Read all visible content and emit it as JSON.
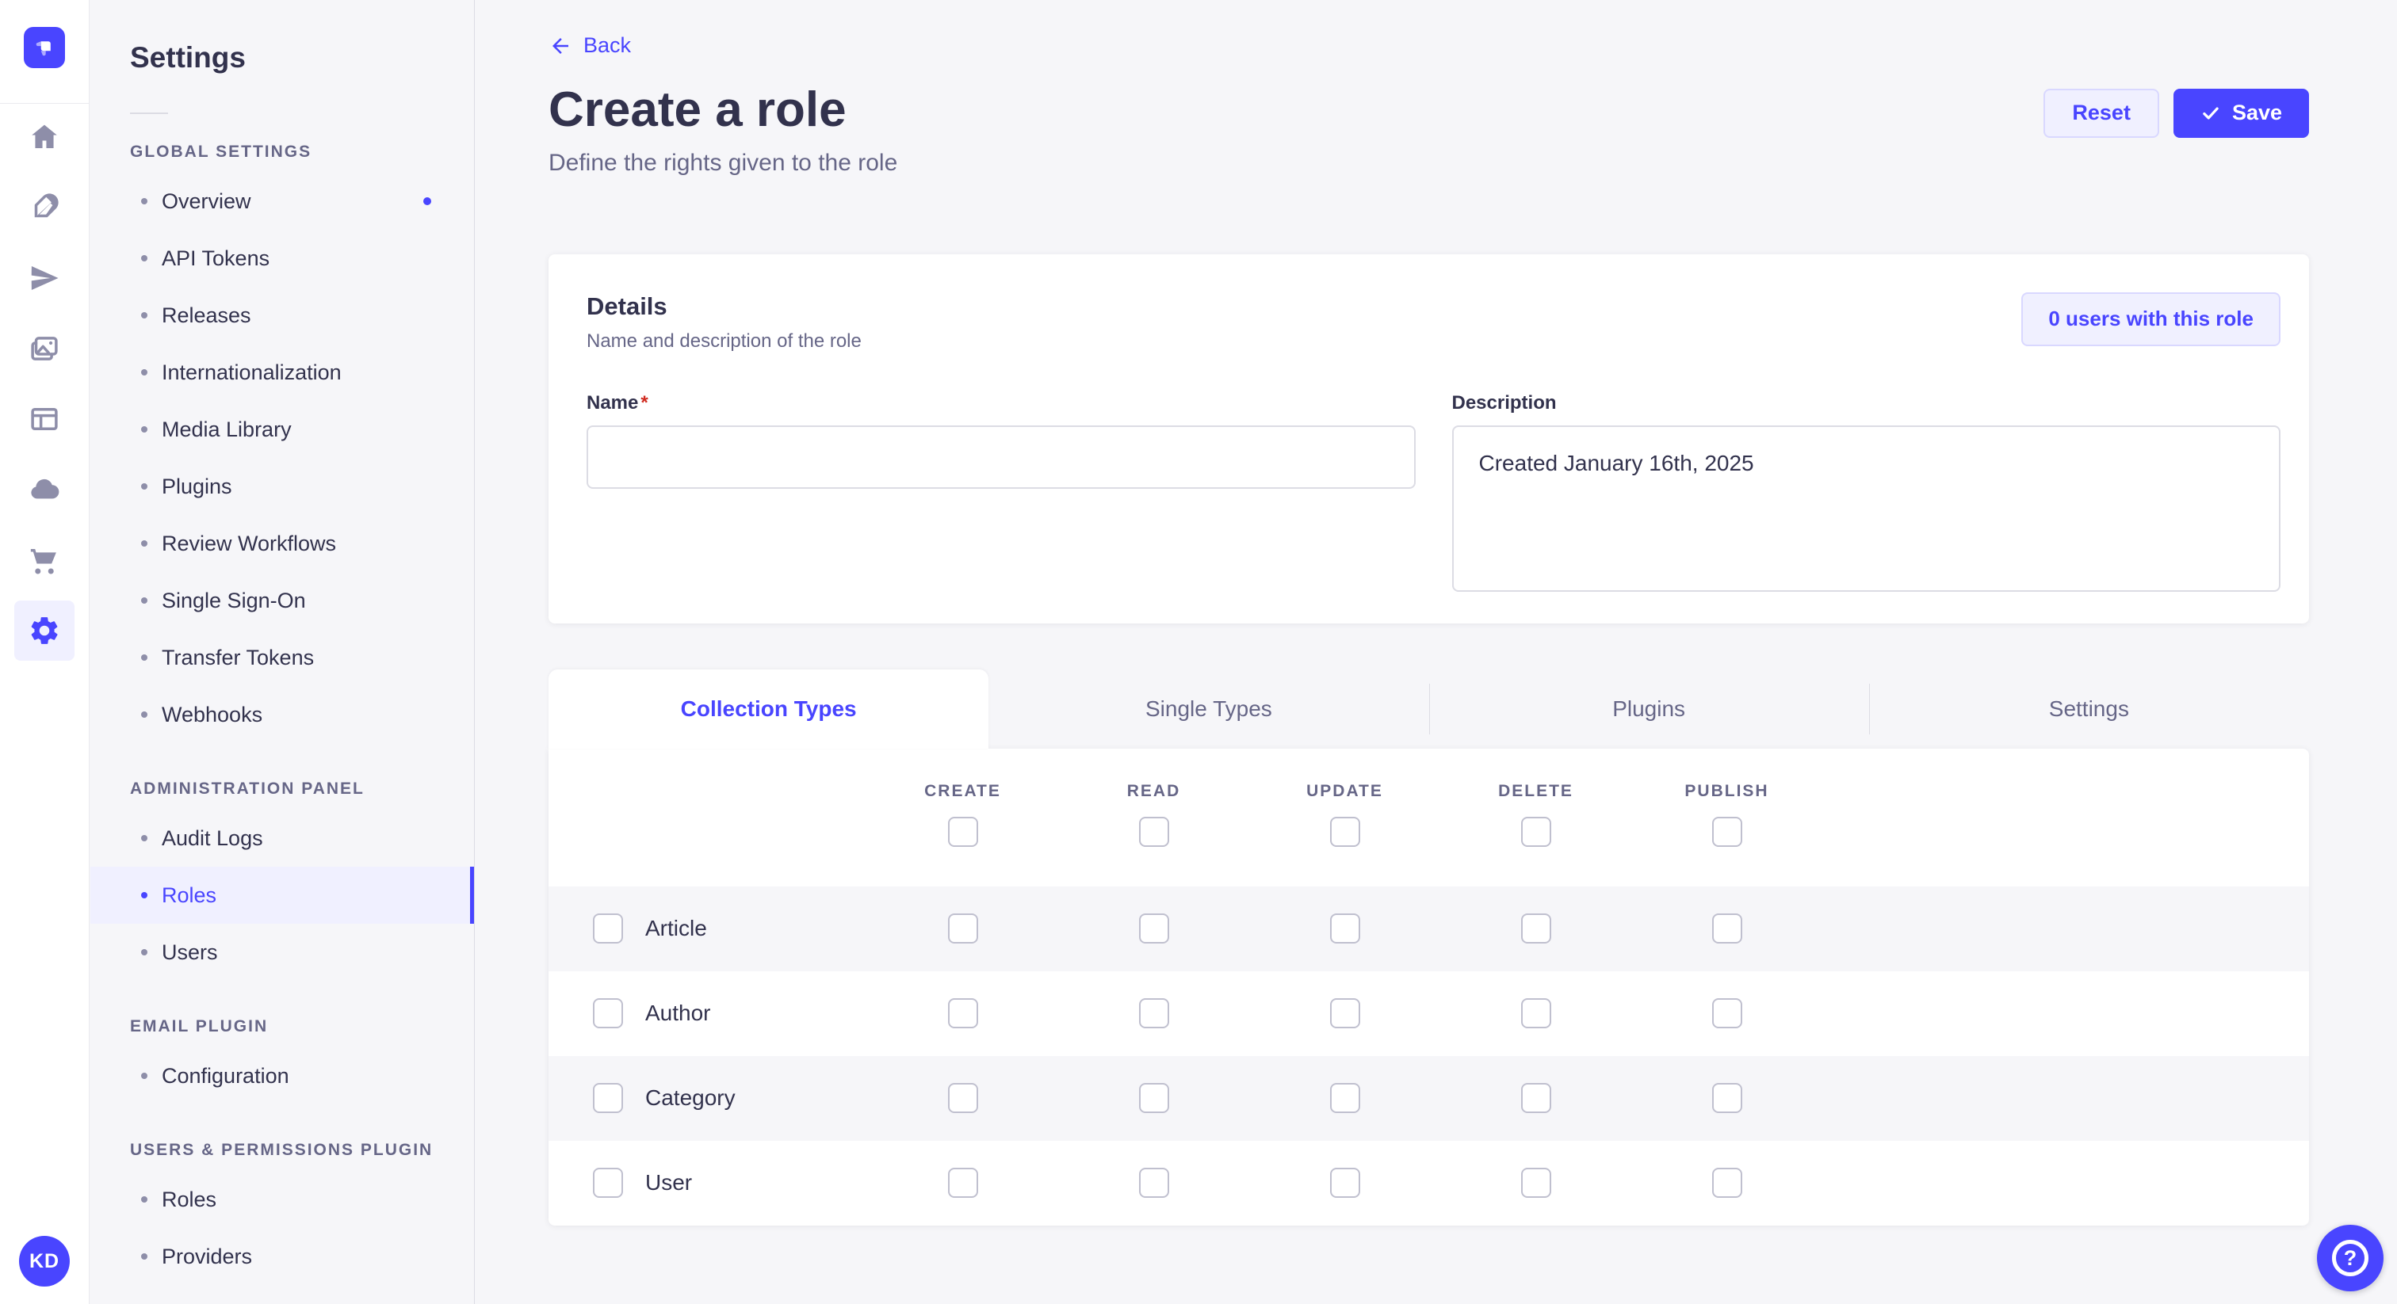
{
  "colors": {
    "accent": "#4945FF",
    "accent_light_bg": "#F0F0FF",
    "accent_border": "#D9D8FF",
    "text_primary": "#32324D",
    "text_secondary": "#666687",
    "icon_gray": "#8E8EA9",
    "page_bg": "#F6F6F9",
    "input_border": "#DCDCE4",
    "checkbox_border": "#C0C0CF",
    "required_red": "#D02B20"
  },
  "nav_rail": {
    "logo_icon": "strapi-logo-icon",
    "icons": [
      "home-icon",
      "feather-icon",
      "paper-plane-icon",
      "media-library-icon",
      "layout-icon",
      "cloud-icon",
      "cart-icon",
      "settings-gear-icon"
    ],
    "active_icon": "settings-gear-icon",
    "avatar_initials": "KD"
  },
  "sidebar": {
    "title": "Settings",
    "sections": [
      {
        "label": "GLOBAL SETTINGS",
        "items": [
          {
            "label": "Overview",
            "notification": true
          },
          {
            "label": "API Tokens"
          },
          {
            "label": "Releases"
          },
          {
            "label": "Internationalization"
          },
          {
            "label": "Media Library"
          },
          {
            "label": "Plugins"
          },
          {
            "label": "Review Workflows"
          },
          {
            "label": "Single Sign-On"
          },
          {
            "label": "Transfer Tokens"
          },
          {
            "label": "Webhooks"
          }
        ]
      },
      {
        "label": "ADMINISTRATION PANEL",
        "items": [
          {
            "label": "Audit Logs"
          },
          {
            "label": "Roles",
            "active": true
          },
          {
            "label": "Users"
          }
        ]
      },
      {
        "label": "EMAIL PLUGIN",
        "items": [
          {
            "label": "Configuration"
          }
        ]
      },
      {
        "label": "USERS & PERMISSIONS PLUGIN",
        "items": [
          {
            "label": "Roles"
          },
          {
            "label": "Providers"
          }
        ]
      }
    ]
  },
  "header": {
    "back_label": "Back",
    "title": "Create a role",
    "subtitle": "Define the rights given to the role",
    "reset_label": "Reset",
    "save_label": "Save"
  },
  "details": {
    "title": "Details",
    "subtitle": "Name and description of the role",
    "users_button_label": "0 users with this role",
    "name_label": "Name",
    "name_required": "*",
    "name_value": "",
    "description_label": "Description",
    "description_value": "Created January 16th, 2025"
  },
  "permissions": {
    "tabs": [
      {
        "label": "Collection Types",
        "active": true
      },
      {
        "label": "Single Types"
      },
      {
        "label": "Plugins"
      },
      {
        "label": "Settings"
      }
    ],
    "columns": [
      "CREATE",
      "READ",
      "UPDATE",
      "DELETE",
      "PUBLISH"
    ],
    "header_checkboxes_checked": [
      false,
      false,
      false,
      false,
      false
    ],
    "rows": [
      {
        "label": "Article",
        "row_checked": false,
        "cells": [
          false,
          false,
          false,
          false,
          false
        ]
      },
      {
        "label": "Author",
        "row_checked": false,
        "cells": [
          false,
          false,
          false,
          false,
          false
        ]
      },
      {
        "label": "Category",
        "row_checked": false,
        "cells": [
          false,
          false,
          false,
          false,
          false
        ]
      },
      {
        "label": "User",
        "row_checked": false,
        "cells": [
          false,
          false,
          false,
          false,
          false
        ]
      }
    ]
  },
  "help": {
    "icon": "question-circle-icon",
    "glyph": "?"
  }
}
